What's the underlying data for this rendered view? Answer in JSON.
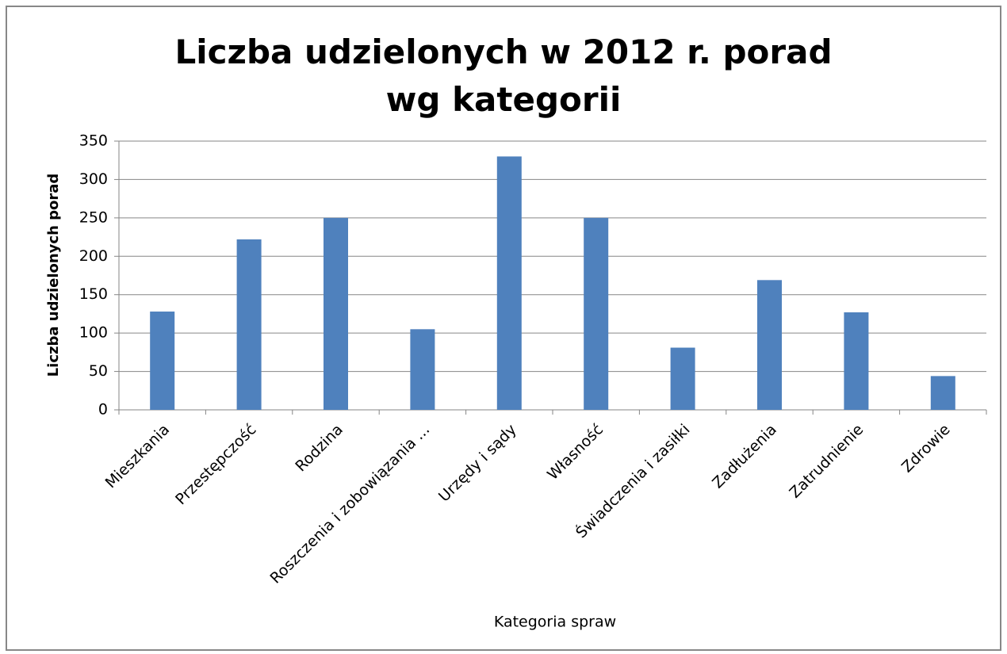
{
  "chart_data": {
    "type": "bar",
    "title": "Liczba udzielonych w 2012 r. porad wg kategorii",
    "xlabel": "Kategoria spraw",
    "ylabel": "Liczba udzielonych porad",
    "categories": [
      "Mieszkania",
      "Przestępczość",
      "Rodzina",
      "Roszczenia i zobowiązania ...",
      "Urzędy i sądy",
      "Własność",
      "Świadczenia i zasiłki",
      "Zadłużenia",
      "Zatrudnienie",
      "Zdrowie"
    ],
    "values": [
      128,
      222,
      250,
      105,
      330,
      250,
      81,
      169,
      127,
      44
    ],
    "color": "#4f81bd",
    "ylim": [
      0,
      350
    ],
    "yticks": [
      0,
      50,
      100,
      150,
      200,
      250,
      300,
      350
    ],
    "grid": true
  }
}
